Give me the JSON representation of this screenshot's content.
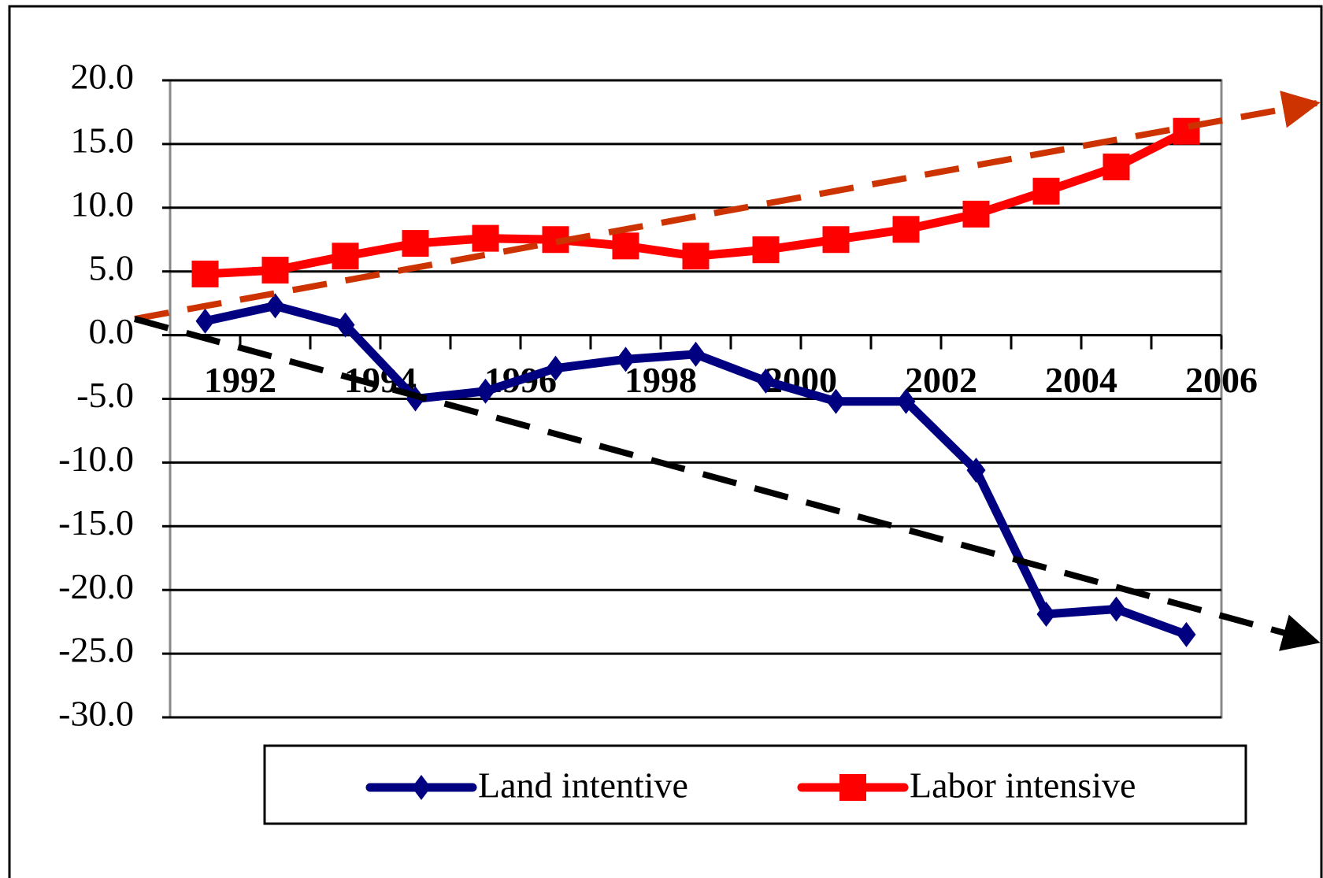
{
  "chart_data": {
    "type": "line",
    "categories": [
      "1992",
      null,
      "1994",
      null,
      "1996",
      null,
      "1998",
      null,
      "2000",
      null,
      "2002",
      null,
      "2004",
      null,
      "2006"
    ],
    "series": [
      {
        "name": "Land intentive",
        "color": "#000080",
        "marker": "diamond",
        "values": [
          1.1,
          2.3,
          0.8,
          -5.0,
          -4.4,
          -2.6,
          -1.9,
          -1.5,
          -3.6,
          -5.2,
          -5.2,
          -10.6,
          -21.9,
          -21.5,
          -23.5
        ]
      },
      {
        "name": "Labor intensive",
        "color": "#ff0000",
        "marker": "square",
        "values": [
          4.8,
          5.1,
          6.2,
          7.2,
          7.6,
          7.5,
          7.0,
          6.2,
          6.7,
          7.5,
          8.3,
          9.5,
          11.3,
          13.2,
          16.0
        ]
      }
    ],
    "ylim": [
      -30,
      20
    ],
    "yticks": [
      {
        "value": -30,
        "label": "-30.0"
      },
      {
        "value": -25,
        "label": "-25.0"
      },
      {
        "value": -20,
        "label": "-20.0"
      },
      {
        "value": -15,
        "label": "-15.0"
      },
      {
        "value": -10,
        "label": "-10.0"
      },
      {
        "value": -5,
        "label": "-5.0"
      },
      {
        "value": 0,
        "label": "0.0"
      },
      {
        "value": 5,
        "label": "5.0"
      },
      {
        "value": 10,
        "label": "10.0"
      },
      {
        "value": 15,
        "label": "15.0"
      },
      {
        "value": 20,
        "label": "20.0"
      }
    ],
    "grid": true,
    "legend": "bottom"
  }
}
